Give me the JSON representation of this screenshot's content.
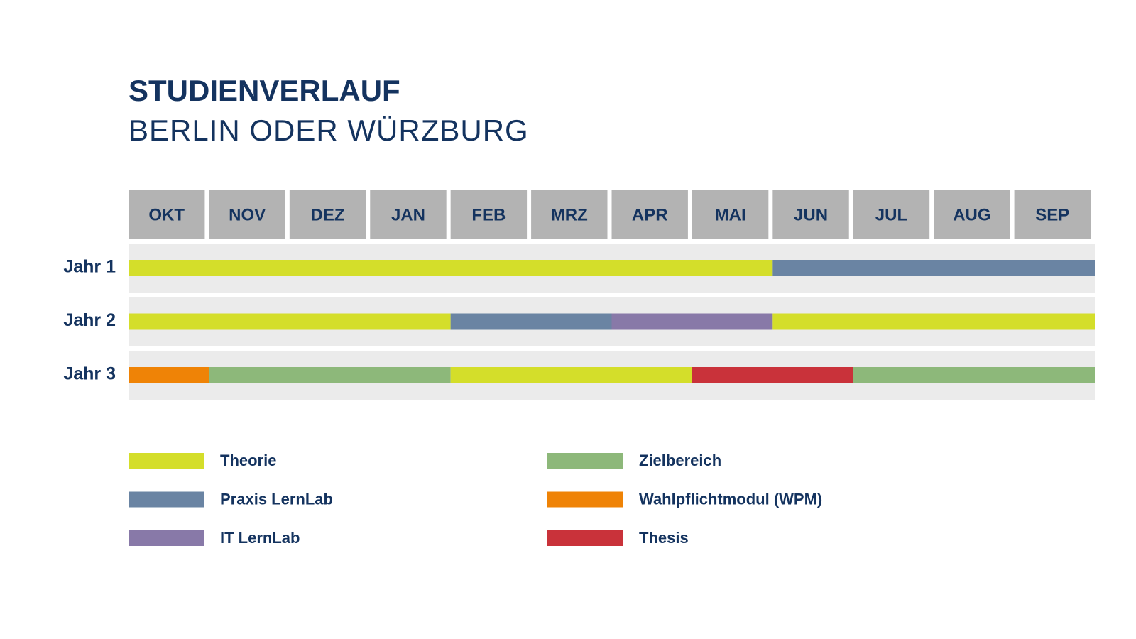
{
  "chart_data": {
    "type": "timeline",
    "title": "STUDIENVERLAUF",
    "subtitle": "BERLIN ODER WÜRZBURG",
    "categories": [
      "OKT",
      "NOV",
      "DEZ",
      "JAN",
      "FEB",
      "MRZ",
      "APR",
      "MAI",
      "JUN",
      "JUL",
      "AUG",
      "SEP"
    ],
    "xlim": [
      0,
      12
    ],
    "series": [
      {
        "name": "Theorie",
        "color": "#d4de2a"
      },
      {
        "name": "Praxis LernLab",
        "color": "#6a84a3"
      },
      {
        "name": "IT LernLab",
        "color": "#8879a8"
      },
      {
        "name": "Zielbereich",
        "color": "#8db87a"
      },
      {
        "name": "Wahlpflichtmodul (WPM)",
        "color": "#ef8306"
      },
      {
        "name": "Thesis",
        "color": "#c9323a"
      }
    ],
    "rows": [
      {
        "label": "Jahr 1",
        "segments": [
          {
            "name": "Theorie",
            "start": 0,
            "end": 8
          },
          {
            "name": "Praxis LernLab",
            "start": 8,
            "end": 12
          }
        ]
      },
      {
        "label": "Jahr 2",
        "segments": [
          {
            "name": "Theorie",
            "start": 0,
            "end": 4
          },
          {
            "name": "Praxis LernLab",
            "start": 4,
            "end": 6
          },
          {
            "name": "IT LernLab",
            "start": 6,
            "end": 8
          },
          {
            "name": "Theorie",
            "start": 8,
            "end": 12
          }
        ]
      },
      {
        "label": "Jahr 3",
        "segments": [
          {
            "name": "Wahlpflichtmodul (WPM)",
            "start": 0,
            "end": 1
          },
          {
            "name": "Zielbereich",
            "start": 1,
            "end": 4
          },
          {
            "name": "Theorie",
            "start": 4,
            "end": 7
          },
          {
            "name": "Thesis",
            "start": 7,
            "end": 9
          },
          {
            "name": "Zielbereich",
            "start": 9,
            "end": 12
          }
        ]
      }
    ]
  }
}
